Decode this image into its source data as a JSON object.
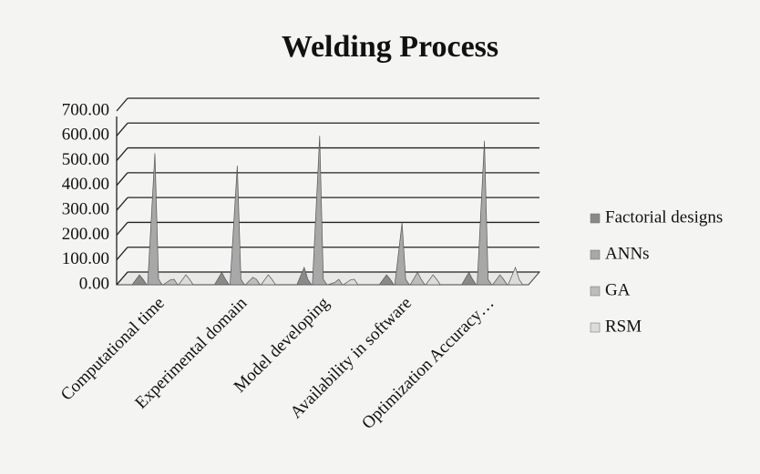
{
  "chart_data": {
    "type": "bar",
    "title": "Welding Process",
    "categories": [
      "Computational time",
      "Experimental domain",
      "Model developing",
      "Availability in software",
      "Optimization Accuracy…"
    ],
    "series": [
      {
        "name": "Factorial designs",
        "color": "#8a8a8a",
        "values": [
          40,
          50,
          70,
          40,
          50
        ]
      },
      {
        "name": "ANNs",
        "color": "#a8a8a8",
        "values": [
          530,
          480,
          600,
          250,
          580
        ]
      },
      {
        "name": "GA",
        "color": "#bdbdbd",
        "values": [
          20,
          30,
          10,
          50,
          40
        ]
      },
      {
        "name": "RSM",
        "color": "#dcdcdc",
        "values": [
          40,
          40,
          20,
          40,
          70
        ]
      }
    ],
    "ylim": [
      0,
      700
    ],
    "yticks": [
      {
        "value": 0,
        "label": "0.00"
      },
      {
        "value": 100,
        "label": "100.00"
      },
      {
        "value": 200,
        "label": "200.00"
      },
      {
        "value": 300,
        "label": "300.00"
      },
      {
        "value": 400,
        "label": "400.00"
      },
      {
        "value": 500,
        "label": "500.00"
      },
      {
        "value": 600,
        "label": "600.00"
      },
      {
        "value": 700,
        "label": "700.00"
      }
    ],
    "grid": true
  }
}
